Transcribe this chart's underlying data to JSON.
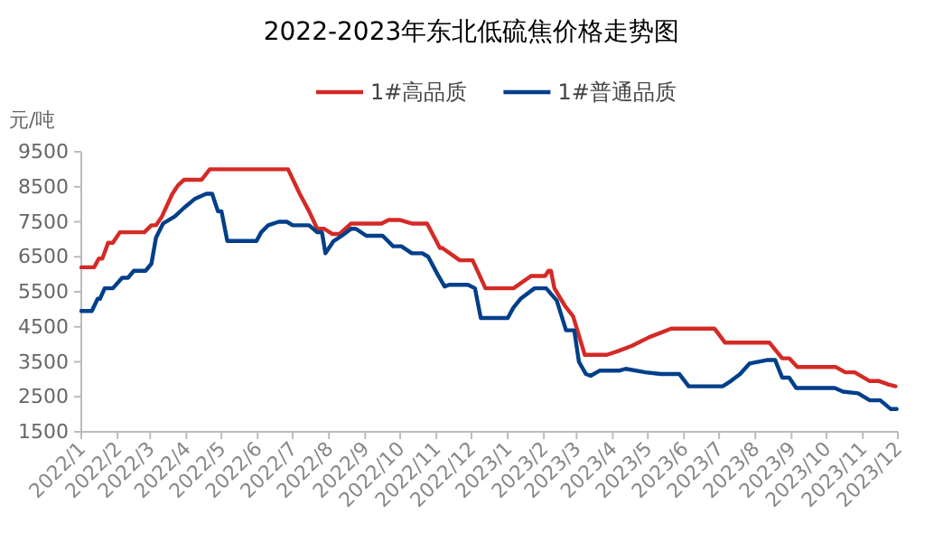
{
  "chart_data": {
    "type": "line",
    "title": "2022-2023年东北低硫焦价格走势图",
    "ylabel": "元/吨",
    "legend": "top",
    "grid": false,
    "marker": "none",
    "line_style": "solid",
    "xlim": [
      "2022-01-01",
      "2023-12-01"
    ],
    "xticks": [
      {
        "value": "2022-01-01",
        "label": "2022/1"
      },
      {
        "value": "2022-02-01",
        "label": "2022/2"
      },
      {
        "value": "2022-03-01",
        "label": "2022/3"
      },
      {
        "value": "2022-04-01",
        "label": "2022/4"
      },
      {
        "value": "2022-05-01",
        "label": "2022/5"
      },
      {
        "value": "2022-06-01",
        "label": "2022/6"
      },
      {
        "value": "2022-07-01",
        "label": "2022/7"
      },
      {
        "value": "2022-08-01",
        "label": "2022/8"
      },
      {
        "value": "2022-09-01",
        "label": "2022/9"
      },
      {
        "value": "2022-10-01",
        "label": "2022/10"
      },
      {
        "value": "2022-11-01",
        "label": "2022/11"
      },
      {
        "value": "2022-12-01",
        "label": "2022/12"
      },
      {
        "value": "2023-01-01",
        "label": "2023/1"
      },
      {
        "value": "2023-02-01",
        "label": "2023/2"
      },
      {
        "value": "2023-03-01",
        "label": "2023/3"
      },
      {
        "value": "2023-04-01",
        "label": "2023/4"
      },
      {
        "value": "2023-05-01",
        "label": "2023/5"
      },
      {
        "value": "2023-06-01",
        "label": "2023/6"
      },
      {
        "value": "2023-07-01",
        "label": "2023/7"
      },
      {
        "value": "2023-08-01",
        "label": "2023/8"
      },
      {
        "value": "2023-09-01",
        "label": "2023/9"
      },
      {
        "value": "2023-10-01",
        "label": "2023/10"
      },
      {
        "value": "2023-11-01",
        "label": "2023/11"
      },
      {
        "value": "2023-12-01",
        "label": "2023/12"
      }
    ],
    "ylim": [
      1500,
      9500
    ],
    "yticks": [
      1500,
      2500,
      3500,
      4500,
      5500,
      6500,
      7500,
      8500,
      9500
    ],
    "series": [
      {
        "name": "1#高品质",
        "color": "#d42a26",
        "x": [
          "2022-01-01",
          "2022-01-12",
          "2022-01-16",
          "2022-01-19",
          "2022-01-24",
          "2022-01-28",
          "2022-02-03",
          "2022-02-24",
          "2022-03-02",
          "2022-03-06",
          "2022-03-11",
          "2022-03-20",
          "2022-03-25",
          "2022-03-30",
          "2022-04-14",
          "2022-04-21",
          "2022-06-27",
          "2022-07-07",
          "2022-07-15",
          "2022-07-22",
          "2022-07-28",
          "2022-08-04",
          "2022-08-10",
          "2022-08-20",
          "2022-09-15",
          "2022-09-21",
          "2022-10-01",
          "2022-10-11",
          "2022-10-24",
          "2022-11-04",
          "2022-11-06",
          "2022-11-21",
          "2022-12-02",
          "2022-12-13",
          "2023-01-06",
          "2023-01-21",
          "2023-02-02",
          "2023-02-05",
          "2023-02-07",
          "2023-02-10",
          "2023-02-19",
          "2023-02-26",
          "2023-03-08",
          "2023-03-27",
          "2023-04-05",
          "2023-04-17",
          "2023-05-02",
          "2023-05-21",
          "2023-06-27",
          "2023-07-06",
          "2023-08-13",
          "2023-08-24",
          "2023-08-30",
          "2023-09-06",
          "2023-10-09",
          "2023-10-17",
          "2023-10-25",
          "2023-11-07",
          "2023-11-15",
          "2023-11-23",
          "2023-11-29"
        ],
        "values": [
          6200,
          6200,
          6450,
          6450,
          6900,
          6900,
          7200,
          7200,
          7400,
          7400,
          7650,
          8300,
          8550,
          8700,
          8700,
          9000,
          9000,
          8300,
          7800,
          7300,
          7300,
          7150,
          7150,
          7450,
          7450,
          7550,
          7550,
          7450,
          7450,
          6750,
          6750,
          6400,
          6400,
          5600,
          5600,
          5950,
          5950,
          6100,
          6100,
          5600,
          5100,
          4800,
          3700,
          3700,
          3800,
          3950,
          4200,
          4450,
          4450,
          4050,
          4050,
          3600,
          3600,
          3350,
          3350,
          3200,
          3200,
          2950,
          2950,
          2850,
          2800
        ]
      },
      {
        "name": "1#普通品质",
        "color": "#003f8a",
        "x": [
          "2022-01-01",
          "2022-01-10",
          "2022-01-15",
          "2022-01-17",
          "2022-01-21",
          "2022-01-28",
          "2022-02-05",
          "2022-02-10",
          "2022-02-15",
          "2022-02-25",
          "2022-03-02",
          "2022-03-06",
          "2022-03-12",
          "2022-03-22",
          "2022-03-30",
          "2022-04-08",
          "2022-04-18",
          "2022-04-23",
          "2022-04-28",
          "2022-05-01",
          "2022-05-06",
          "2022-05-31",
          "2022-06-04",
          "2022-06-10",
          "2022-06-19",
          "2022-06-26",
          "2022-07-01",
          "2022-07-15",
          "2022-07-22",
          "2022-07-26",
          "2022-07-29",
          "2022-08-05",
          "2022-08-12",
          "2022-08-20",
          "2022-08-24",
          "2022-09-02",
          "2022-09-16",
          "2022-09-25",
          "2022-10-02",
          "2022-10-11",
          "2022-10-20",
          "2022-10-25",
          "2022-11-02",
          "2022-11-08",
          "2022-11-12",
          "2022-11-28",
          "2022-12-04",
          "2022-12-09",
          "2023-01-01",
          "2023-01-06",
          "2023-01-12",
          "2023-01-24",
          "2023-02-03",
          "2023-02-12",
          "2023-02-20",
          "2023-02-27",
          "2023-03-03",
          "2023-03-09",
          "2023-03-13",
          "2023-03-21",
          "2023-04-07",
          "2023-04-12",
          "2023-04-29",
          "2023-05-12",
          "2023-05-28",
          "2023-06-05",
          "2023-07-04",
          "2023-07-11",
          "2023-07-19",
          "2023-07-27",
          "2023-08-11",
          "2023-08-18",
          "2023-08-24",
          "2023-08-30",
          "2023-09-05",
          "2023-10-08",
          "2023-10-15",
          "2023-10-28",
          "2023-11-07",
          "2023-11-16",
          "2023-11-25",
          "2023-11-30"
        ],
        "values": [
          4950,
          4950,
          5300,
          5300,
          5600,
          5600,
          5900,
          5900,
          6100,
          6100,
          6300,
          7050,
          7450,
          7650,
          7900,
          8150,
          8300,
          8300,
          7800,
          7800,
          6950,
          6950,
          7200,
          7400,
          7500,
          7500,
          7400,
          7400,
          7200,
          7200,
          6600,
          6950,
          7100,
          7300,
          7300,
          7100,
          7100,
          6800,
          6800,
          6600,
          6600,
          6500,
          6000,
          5650,
          5700,
          5700,
          5600,
          4750,
          4750,
          5050,
          5300,
          5600,
          5600,
          5250,
          4400,
          4400,
          3500,
          3150,
          3100,
          3250,
          3250,
          3300,
          3200,
          3150,
          3150,
          2800,
          2800,
          2950,
          3150,
          3450,
          3550,
          3550,
          3050,
          3050,
          2750,
          2750,
          2650,
          2600,
          2400,
          2400,
          2150,
          2150
        ]
      }
    ]
  }
}
